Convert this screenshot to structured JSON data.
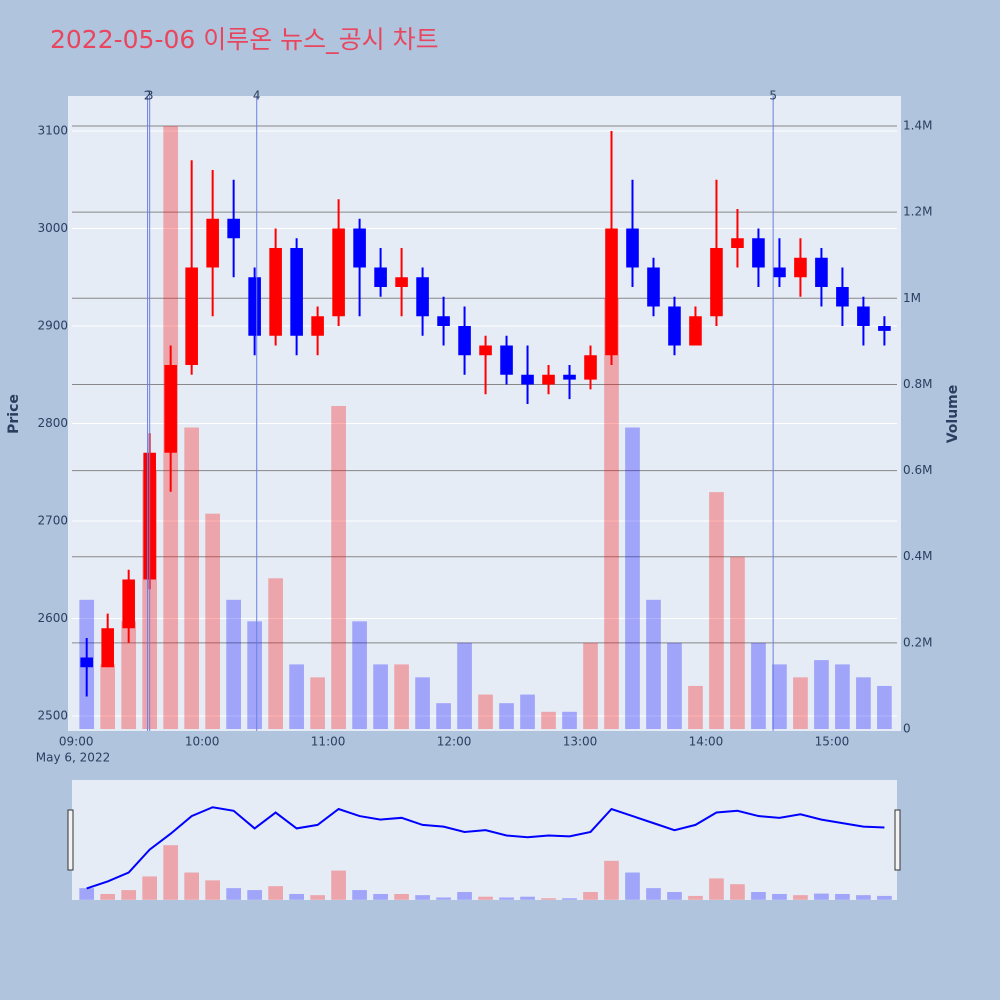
{
  "chart_data": {
    "type": "candlestick",
    "title": "2022-05-06 이루온 뉴스_공시 차트",
    "x_date_label": "May 6, 2022",
    "y_label": "Price",
    "y2_label": "Volume",
    "x": [
      "09:00",
      "09:10",
      "09:20",
      "09:30",
      "09:40",
      "09:50",
      "10:00",
      "10:10",
      "10:20",
      "10:30",
      "10:40",
      "10:50",
      "11:00",
      "11:10",
      "11:20",
      "11:30",
      "11:40",
      "11:50",
      "12:00",
      "12:10",
      "12:20",
      "12:30",
      "12:40",
      "12:50",
      "13:00",
      "13:10",
      "13:20",
      "13:30",
      "13:40",
      "13:50",
      "14:00",
      "14:10",
      "14:20",
      "14:30",
      "14:40",
      "14:50",
      "15:00",
      "15:10",
      "15:20"
    ],
    "open": [
      2560,
      2550,
      2590,
      2640,
      2770,
      2860,
      2960,
      3010,
      2950,
      2890,
      2980,
      2890,
      2910,
      3000,
      2960,
      2940,
      2950,
      2910,
      2900,
      2870,
      2880,
      2850,
      2840,
      2850,
      2845,
      2870,
      3000,
      2960,
      2920,
      2880,
      2910,
      2980,
      2990,
      2960,
      2950,
      2970,
      2940,
      2920,
      2900
    ],
    "high": [
      2580,
      2605,
      2650,
      2790,
      2880,
      3070,
      3060,
      3050,
      2960,
      3000,
      2990,
      2920,
      3030,
      3010,
      2980,
      2980,
      2960,
      2930,
      2920,
      2890,
      2890,
      2880,
      2860,
      2860,
      2880,
      3100,
      3050,
      2970,
      2930,
      2920,
      3050,
      3020,
      3000,
      2990,
      2990,
      2980,
      2960,
      2930,
      2910
    ],
    "low": [
      2520,
      2550,
      2575,
      2630,
      2730,
      2850,
      2910,
      2950,
      2870,
      2880,
      2870,
      2870,
      2900,
      2910,
      2930,
      2910,
      2890,
      2880,
      2850,
      2830,
      2840,
      2820,
      2830,
      2825,
      2835,
      2860,
      2940,
      2910,
      2870,
      2880,
      2900,
      2960,
      2940,
      2940,
      2930,
      2920,
      2900,
      2880,
      2880
    ],
    "close": [
      2550,
      2590,
      2640,
      2770,
      2860,
      2960,
      3010,
      2990,
      2890,
      2980,
      2890,
      2910,
      3000,
      2960,
      2940,
      2950,
      2910,
      2900,
      2870,
      2880,
      2850,
      2840,
      2850,
      2845,
      2870,
      3000,
      2960,
      2920,
      2880,
      2910,
      2980,
      2990,
      2960,
      2950,
      2970,
      2940,
      2920,
      2900,
      2895
    ],
    "volume": [
      300000,
      150000,
      250000,
      600000,
      1400000,
      700000,
      500000,
      300000,
      250000,
      350000,
      150000,
      120000,
      750000,
      250000,
      150000,
      150000,
      120000,
      60000,
      200000,
      80000,
      60000,
      80000,
      40000,
      40000,
      200000,
      1000000,
      700000,
      300000,
      200000,
      100000,
      550000,
      400000,
      200000,
      150000,
      120000,
      160000,
      150000,
      120000,
      100000
    ],
    "increasing_color": "#ff0000",
    "decreasing_color": "#0000ff",
    "xlim": [
      "08:58",
      "15:31"
    ],
    "xticks": [
      "09:00",
      "10:00",
      "11:00",
      "12:00",
      "13:00",
      "14:00",
      "15:00"
    ],
    "ylim": [
      2484.6,
      3135.9
    ],
    "yticks": [
      2500,
      2600,
      2700,
      2800,
      2900,
      3000,
      3100
    ],
    "y2lim": [
      -4600,
      1469700
    ],
    "y2ticks": [
      0,
      {
        "value": 200000,
        "label": "0.2M"
      },
      {
        "value": 400000,
        "label": "0.4M"
      },
      {
        "value": 600000,
        "label": "0.6M"
      },
      {
        "value": 800000,
        "label": "0.8M"
      },
      {
        "value": 1000000,
        "label": "1M"
      },
      {
        "value": 1200000,
        "label": "1.2M"
      },
      {
        "value": 1400000,
        "label": "1.4M"
      }
    ],
    "events": [
      {
        "x": "09:34",
        "label": "2"
      },
      {
        "x": "09:35",
        "label": "3"
      },
      {
        "x": "10:26",
        "label": "4"
      },
      {
        "x": "14:32",
        "label": "5"
      }
    ],
    "grid": true
  }
}
